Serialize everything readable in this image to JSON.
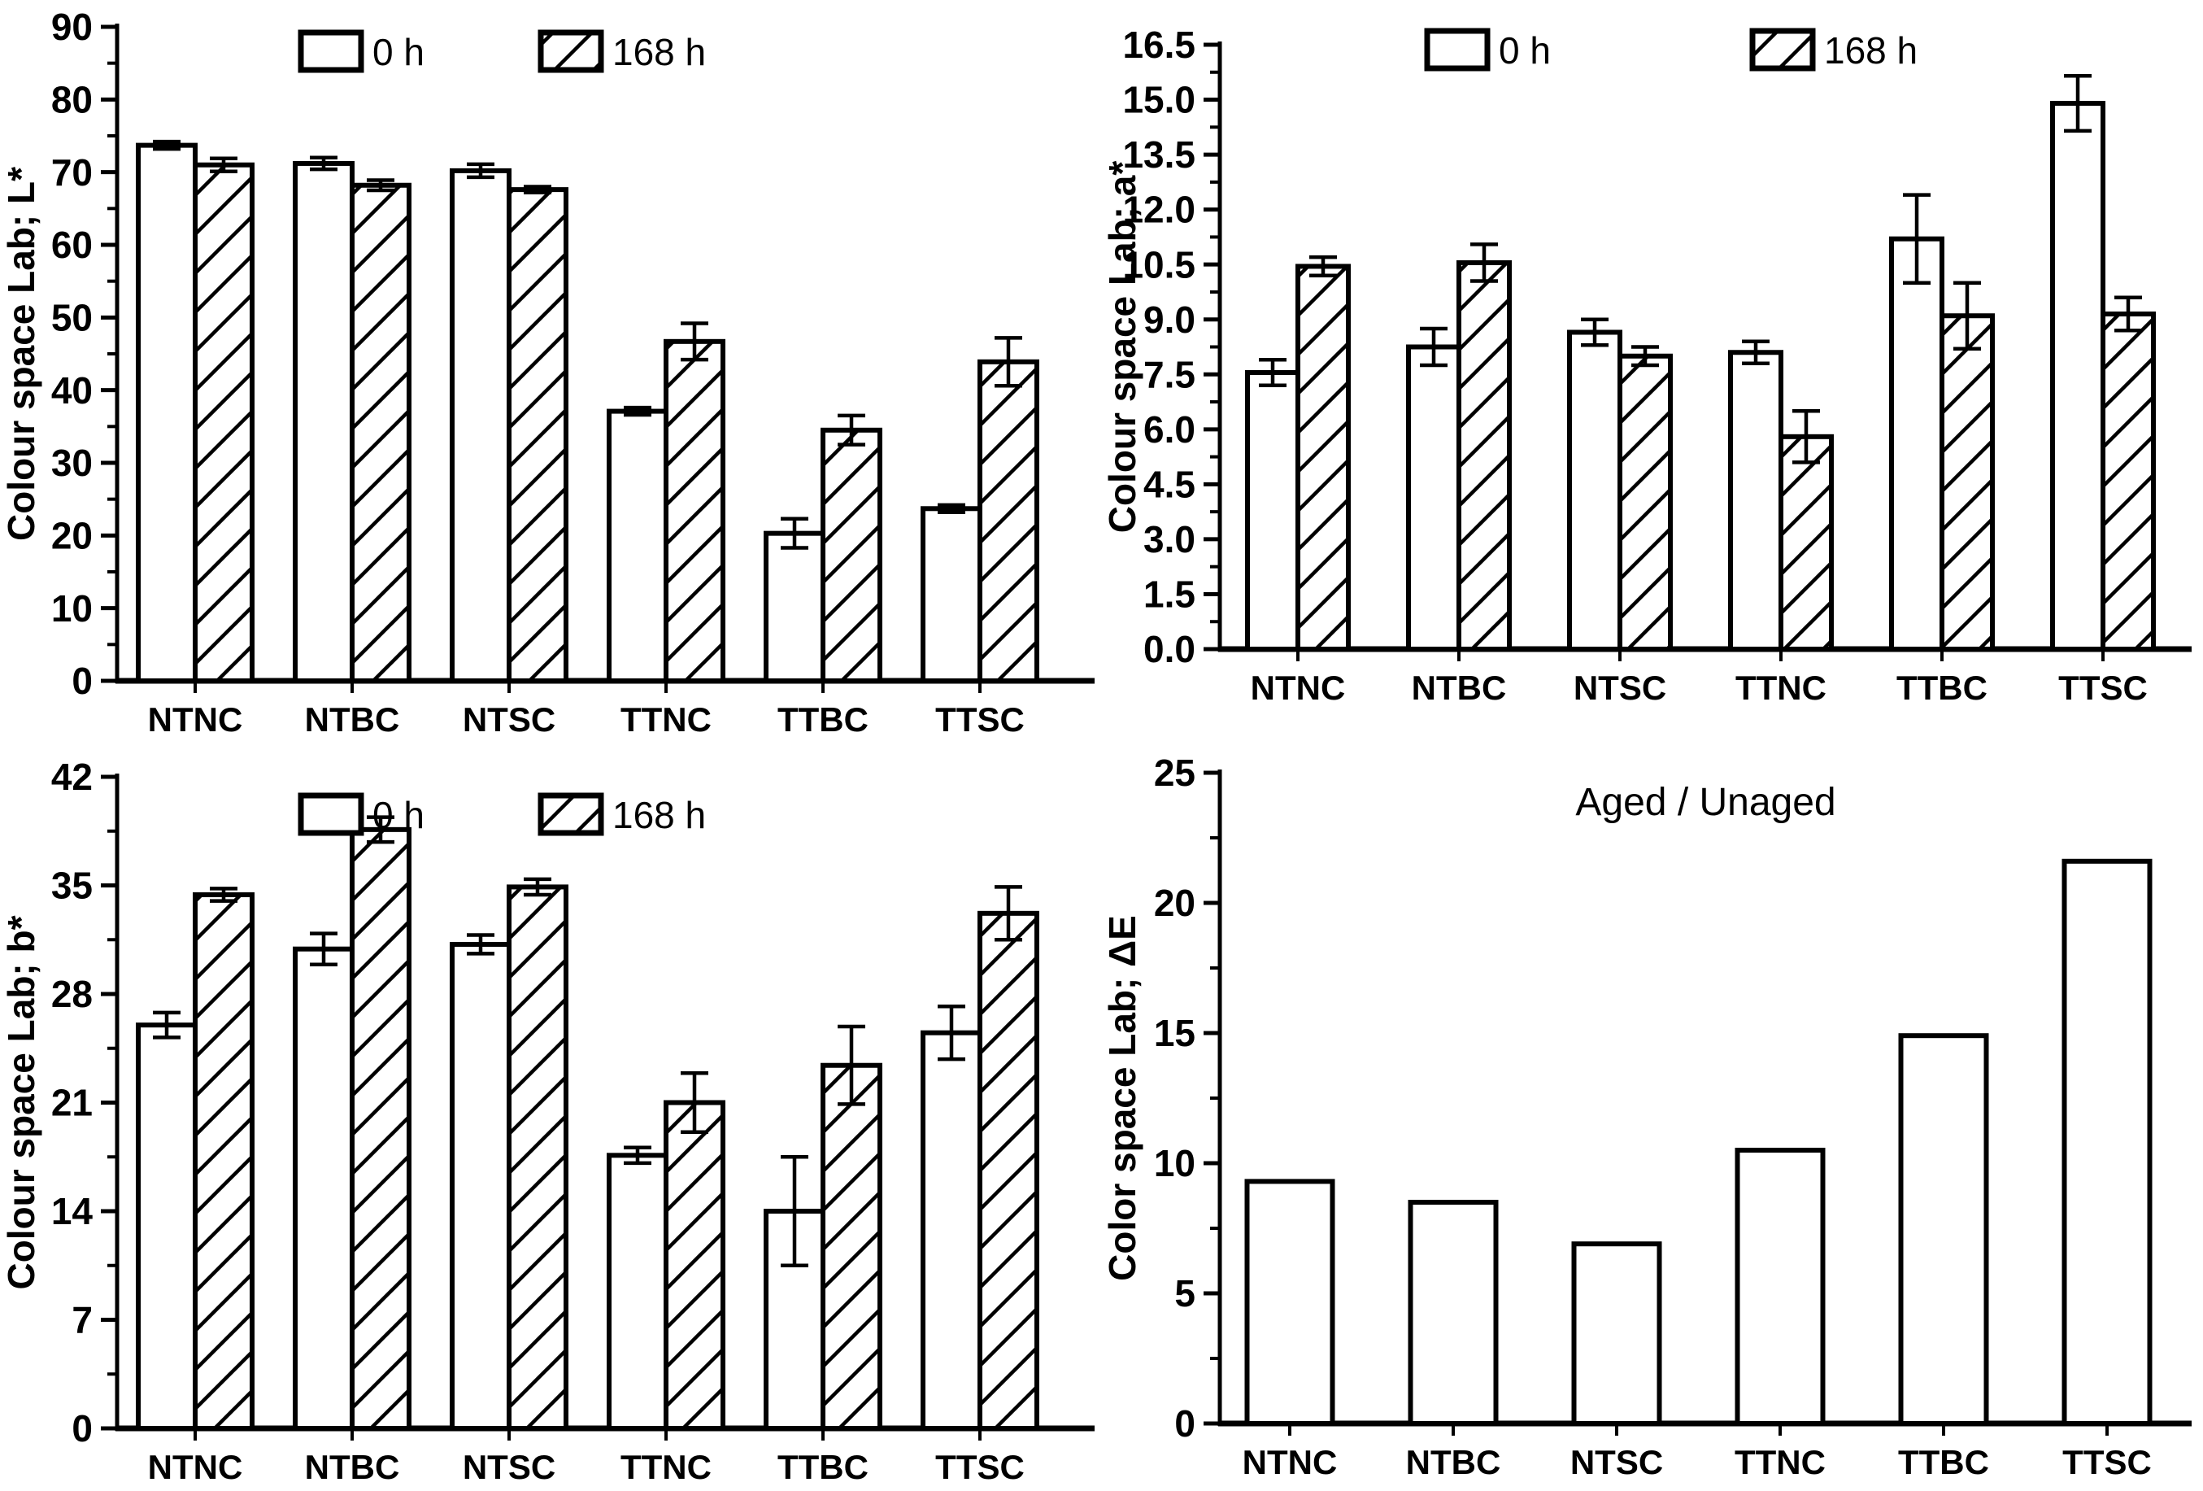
{
  "page": {
    "background": "#ffffff",
    "ink": "#000000"
  },
  "categories": [
    "NTNC",
    "NTBC",
    "NTSC",
    "TTNC",
    "TTBC",
    "TTSC"
  ],
  "legend": {
    "labels": [
      "0 h",
      "168 h"
    ]
  },
  "chart_data": [
    {
      "type": "bar",
      "panel": "top-left",
      "ylabel": "Colour space Lab; L*",
      "ylim": [
        0,
        90
      ],
      "yticks": [
        0,
        10,
        20,
        30,
        40,
        50,
        60,
        70,
        80,
        90
      ],
      "ytick_labels": [
        "0",
        "10",
        "20",
        "30",
        "40",
        "50",
        "60",
        "70",
        "80",
        "90"
      ],
      "grid": false,
      "legend": [
        "0 h",
        "168 h"
      ],
      "legend_position": "top",
      "categories": [
        "NTNC",
        "NTBC",
        "NTSC",
        "TTNC",
        "TTBC",
        "TTSC"
      ],
      "series": [
        {
          "name": "0 h",
          "fill": "solid",
          "values": [
            73.7,
            71.2,
            70.2,
            37.1,
            20.3,
            23.7
          ],
          "errors": [
            0.5,
            0.8,
            0.9,
            0.5,
            2.0,
            0.5
          ]
        },
        {
          "name": "168 h",
          "fill": "hatch",
          "values": [
            71.0,
            68.2,
            67.6,
            46.7,
            34.5,
            43.9
          ],
          "errors": [
            0.9,
            0.7,
            0.4,
            2.5,
            2.0,
            3.3
          ]
        }
      ]
    },
    {
      "type": "bar",
      "panel": "top-right",
      "ylabel": "Colour space Lab; a*",
      "ylim": [
        0,
        16.5
      ],
      "yticks": [
        0,
        1.5,
        3,
        4.5,
        6,
        7.5,
        9,
        10.5,
        12,
        13.5,
        15,
        16.5
      ],
      "ytick_labels": [
        "0.0",
        "1.5",
        "3.0",
        "4.5",
        "6.0",
        "7.5",
        "9.0",
        "10.5",
        "12.0",
        "13.5",
        "15.0",
        "16.5"
      ],
      "grid": false,
      "legend": [
        "0 h",
        "168 h"
      ],
      "legend_position": "top",
      "categories": [
        "NTNC",
        "NTBC",
        "NTSC",
        "TTNC",
        "TTBC",
        "TTSC"
      ],
      "series": [
        {
          "name": "0 h",
          "fill": "solid",
          "values": [
            7.55,
            8.25,
            8.65,
            8.1,
            11.2,
            14.9
          ],
          "errors": [
            0.35,
            0.5,
            0.35,
            0.3,
            1.2,
            0.75
          ]
        },
        {
          "name": "168 h",
          "fill": "hatch",
          "values": [
            10.45,
            10.55,
            8.0,
            5.8,
            9.1,
            9.15
          ],
          "errors": [
            0.25,
            0.5,
            0.25,
            0.7,
            0.9,
            0.45
          ]
        }
      ]
    },
    {
      "type": "bar",
      "panel": "bottom-left",
      "ylabel": "Colour space Lab; b*",
      "ylim": [
        0,
        42
      ],
      "yticks": [
        0,
        7,
        14,
        21,
        28,
        35,
        42
      ],
      "ytick_labels": [
        "0",
        "7",
        "14",
        "21",
        "28",
        "35",
        "42"
      ],
      "grid": false,
      "legend": [
        "0 h",
        "168 h"
      ],
      "legend_position": "top",
      "categories": [
        "NTNC",
        "NTBC",
        "NTSC",
        "TTNC",
        "TTBC",
        "TTSC"
      ],
      "series": [
        {
          "name": "0 h",
          "fill": "solid",
          "values": [
            26.0,
            30.9,
            31.2,
            17.6,
            14.0,
            25.5
          ],
          "errors": [
            0.8,
            1.0,
            0.6,
            0.5,
            3.5,
            1.7
          ]
        },
        {
          "name": "168 h",
          "fill": "hatch",
          "values": [
            34.4,
            38.6,
            34.9,
            21.0,
            23.4,
            33.2
          ],
          "errors": [
            0.4,
            0.8,
            0.5,
            1.9,
            2.5,
            1.7
          ]
        }
      ]
    },
    {
      "type": "bar",
      "panel": "bottom-right",
      "title": "Aged / Unaged",
      "ylabel": "Color space Lab; ΔE",
      "ylim": [
        0,
        25
      ],
      "yticks": [
        0,
        5,
        10,
        15,
        20,
        25
      ],
      "ytick_labels": [
        "0",
        "5",
        "10",
        "15",
        "20",
        "25"
      ],
      "grid": false,
      "categories": [
        "NTNC",
        "NTBC",
        "NTSC",
        "TTNC",
        "TTBC",
        "TTSC"
      ],
      "series": [
        {
          "name": "Aged / Unaged",
          "fill": "solid",
          "values": [
            9.3,
            8.5,
            6.9,
            10.5,
            14.9,
            21.6
          ],
          "errors": null
        }
      ]
    }
  ]
}
